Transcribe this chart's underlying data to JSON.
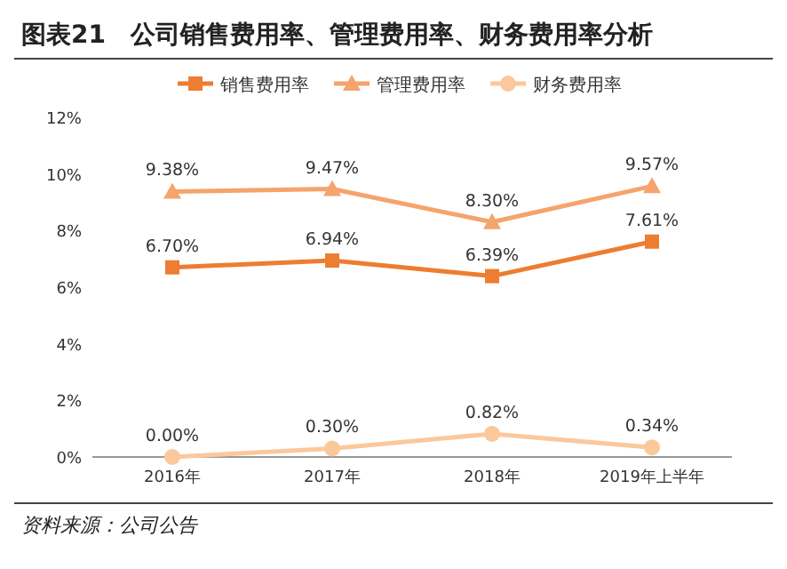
{
  "chart_data": {
    "type": "line",
    "title": "图表21　公司销售费用率、管理费用率、财务费用率分析",
    "categories": [
      "2016年",
      "2017年",
      "2018年",
      "2019年上半年"
    ],
    "series": [
      {
        "name": "销售费用率",
        "color": "#ed7d31",
        "marker": "square",
        "values": [
          6.7,
          6.94,
          6.39,
          7.61
        ],
        "value_labels": [
          "6.70%",
          "6.94%",
          "6.39%",
          "7.61%"
        ]
      },
      {
        "name": "管理费用率",
        "color": "#f4a46c",
        "marker": "triangle",
        "values": [
          9.38,
          9.47,
          8.3,
          9.57
        ],
        "value_labels": [
          "9.38%",
          "9.47%",
          "8.30%",
          "9.57%"
        ]
      },
      {
        "name": "财务费用率",
        "color": "#fbc89c",
        "marker": "circle",
        "values": [
          0.0,
          0.3,
          0.82,
          0.34
        ],
        "value_labels": [
          "0.00%",
          "0.30%",
          "0.82%",
          "0.34%"
        ]
      }
    ],
    "ylim": [
      0,
      12
    ],
    "yticks": [
      {
        "value": 0,
        "label": "0%"
      },
      {
        "value": 2,
        "label": "2%"
      },
      {
        "value": 4,
        "label": "4%"
      },
      {
        "value": 6,
        "label": "6%"
      },
      {
        "value": 8,
        "label": "8%"
      },
      {
        "value": 10,
        "label": "10%"
      },
      {
        "value": 12,
        "label": "12%"
      }
    ],
    "legend": "top",
    "grid": false,
    "line_style": "solid",
    "annotations": [
      "资料来源：公司公告"
    ]
  }
}
